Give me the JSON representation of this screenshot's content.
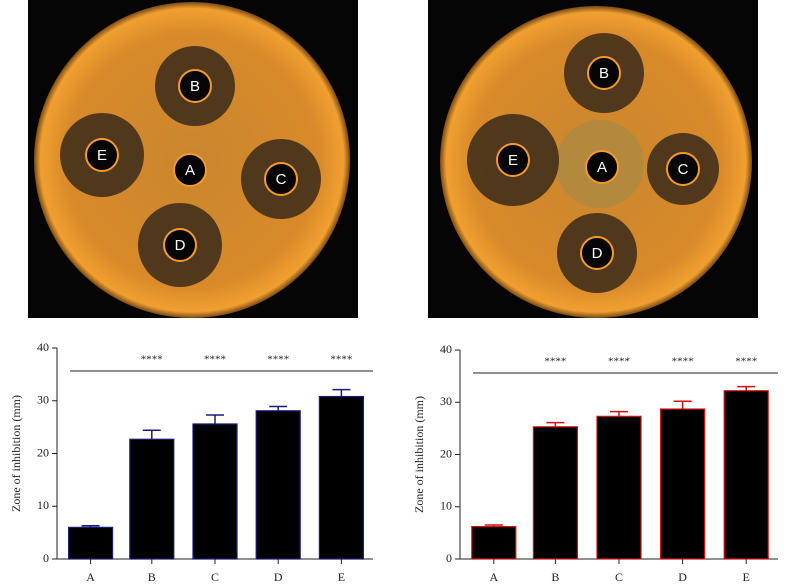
{
  "photos": [
    {
      "wells": [
        "B",
        "E",
        "A",
        "C",
        "D"
      ]
    },
    {
      "wells": [
        "B",
        "E",
        "A",
        "C",
        "D"
      ]
    }
  ],
  "chart_data": [
    {
      "type": "bar",
      "y_label": "Zone of inhibition (mm)",
      "categories": [
        "A",
        "B",
        "C",
        "D",
        "E"
      ],
      "values": [
        6,
        22.7,
        25.6,
        28.1,
        30.8
      ],
      "errors": [
        0.3,
        1.7,
        1.7,
        0.8,
        1.3
      ],
      "significance": [
        null,
        "****",
        "****",
        "****",
        "****"
      ],
      "color": "#000000",
      "edge_color": "#1c1c78",
      "ylim": [
        0,
        40
      ],
      "yticks": [
        0,
        10,
        20,
        30,
        40
      ]
    },
    {
      "type": "bar",
      "y_label": "Zone of inhibition (mm)",
      "categories": [
        "A",
        "B",
        "C",
        "D",
        "E"
      ],
      "values": [
        6.2,
        25.3,
        27.3,
        28.7,
        32.2
      ],
      "errors": [
        0.3,
        0.8,
        0.9,
        1.5,
        0.8
      ],
      "significance": [
        null,
        "****",
        "****",
        "****",
        "****"
      ],
      "color": "#000000",
      "edge_color": "#d01010",
      "ylim": [
        0,
        40
      ],
      "yticks": [
        0,
        10,
        20,
        30,
        40
      ]
    }
  ]
}
